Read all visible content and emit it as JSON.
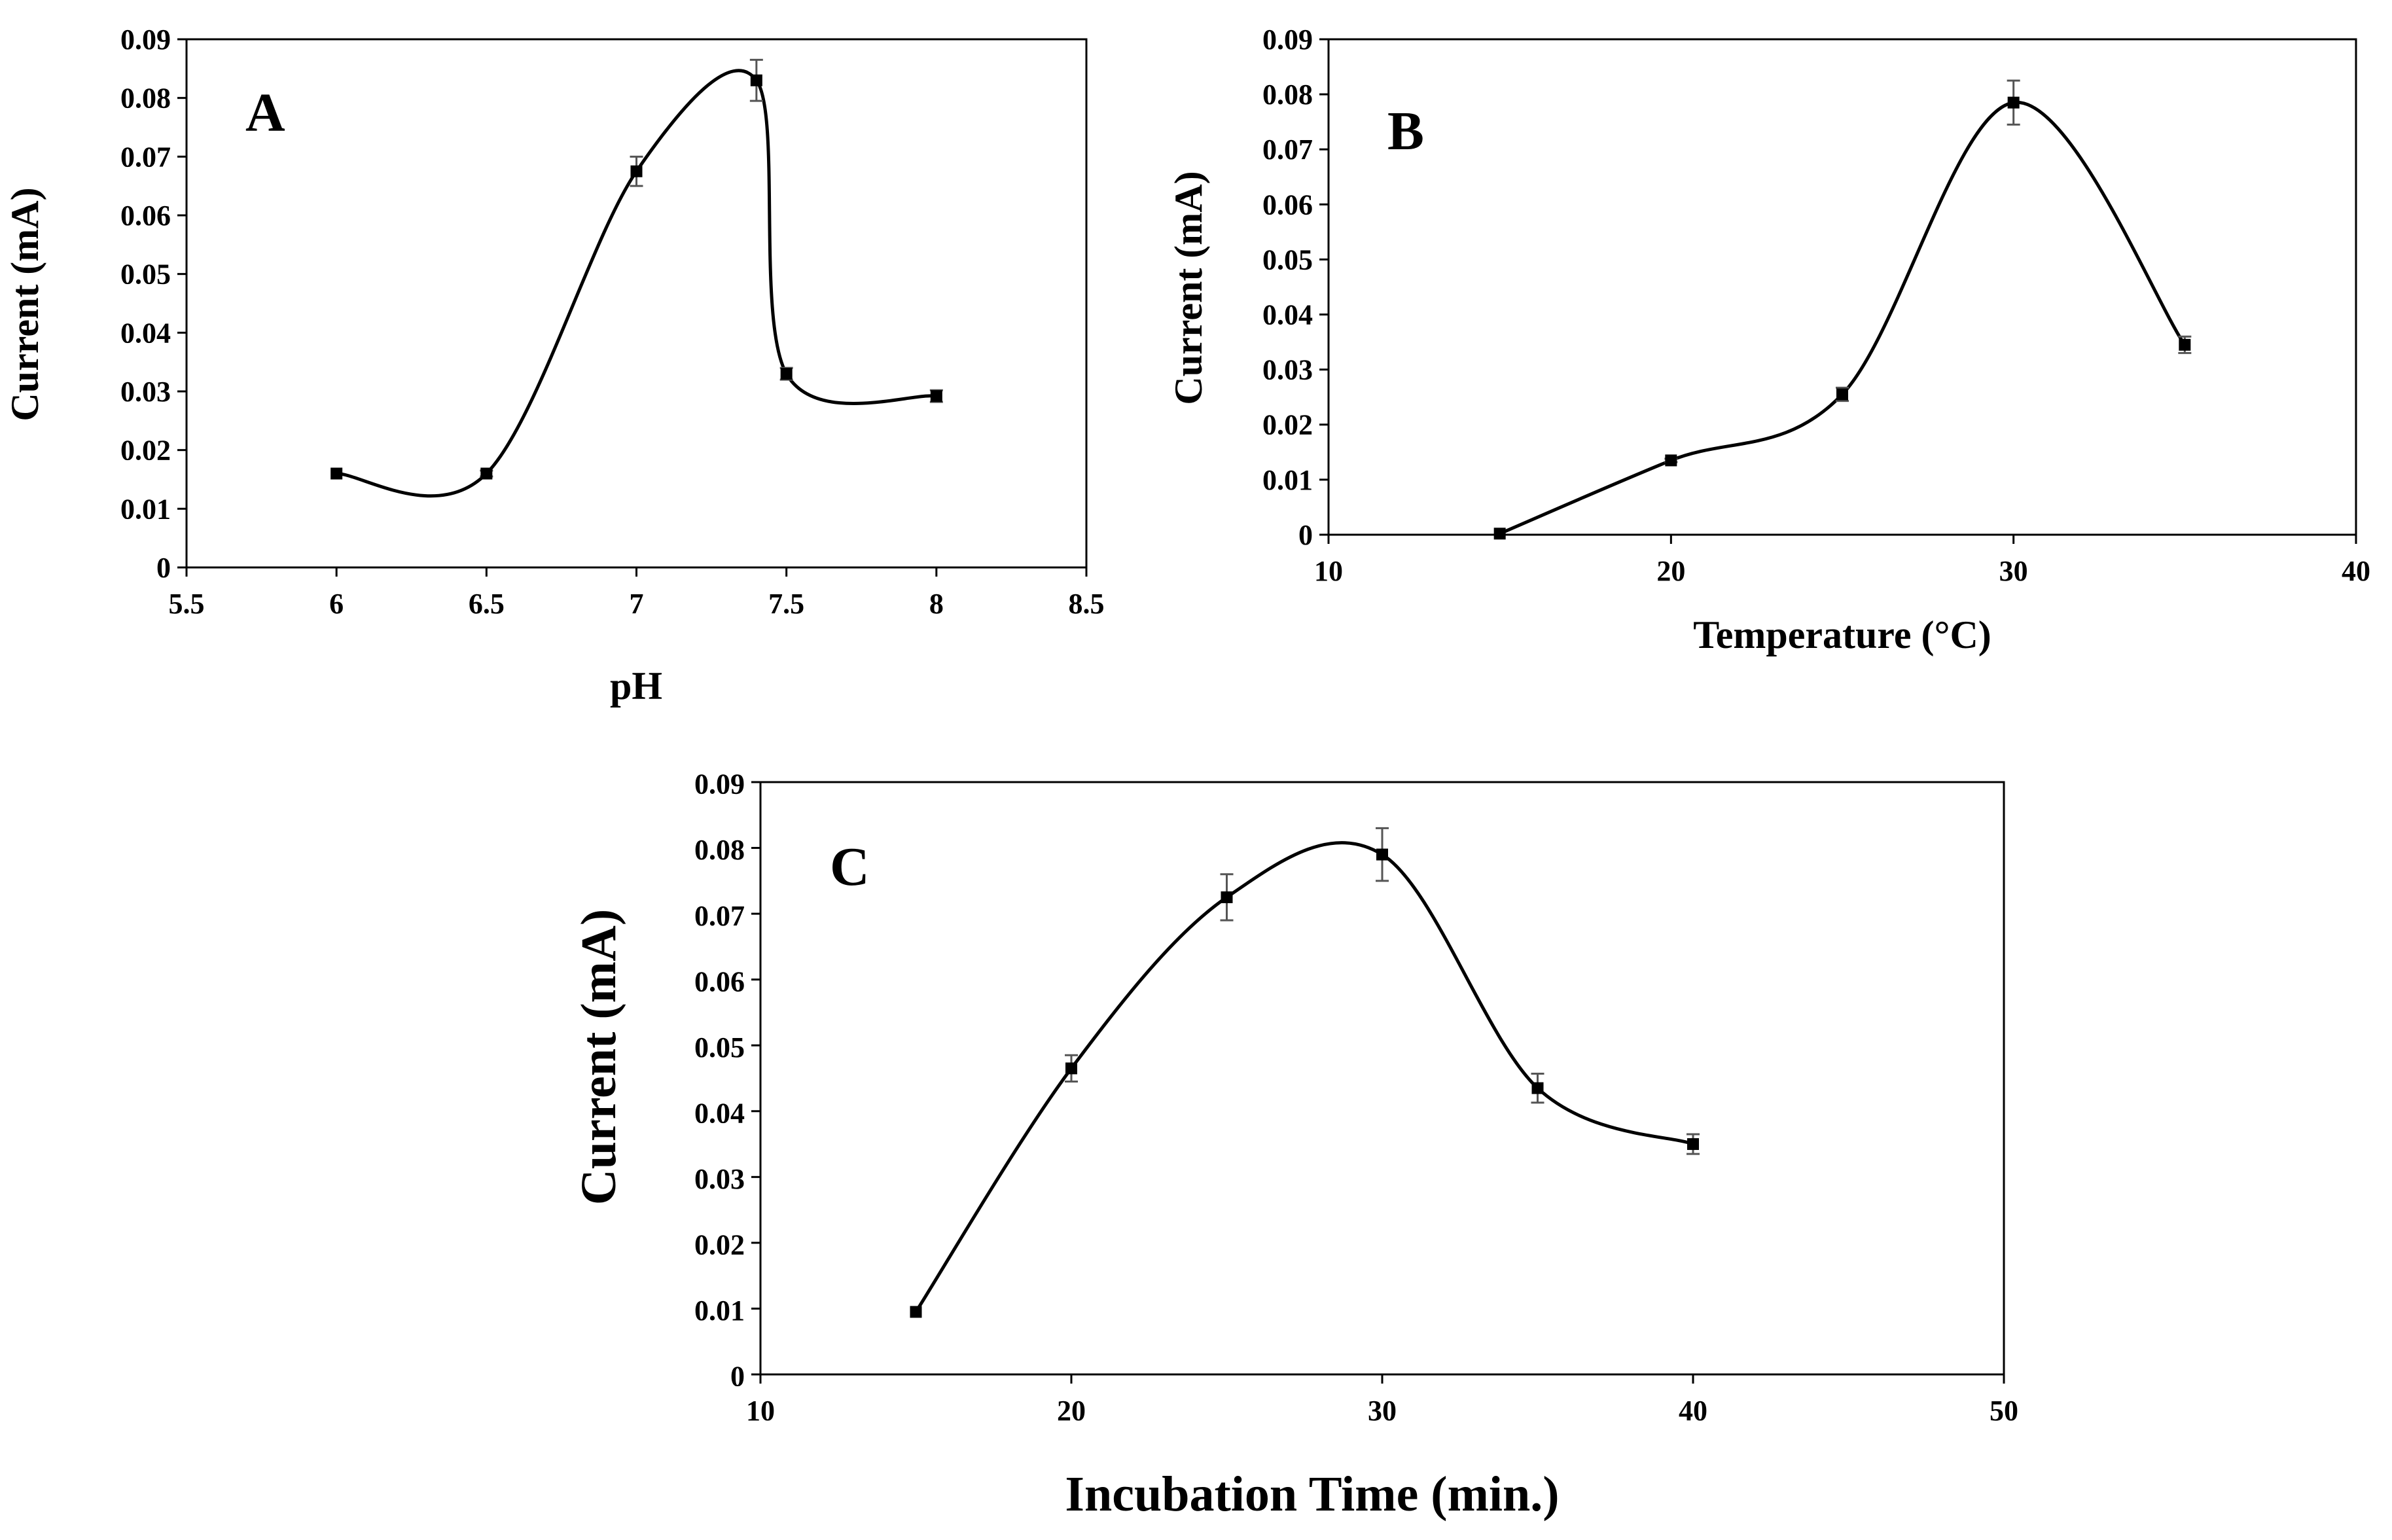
{
  "chart_data": [
    {
      "id": "A",
      "type": "line",
      "panel_label": "A",
      "xlabel": "pH",
      "ylabel": "Current (mA)",
      "xlim": [
        5.5,
        8.5
      ],
      "ylim": [
        0,
        0.09
      ],
      "xticks": [
        "5.5",
        "6",
        "6.5",
        "7",
        "7.5",
        "8",
        "8.5"
      ],
      "yticks": [
        "0",
        "0.01",
        "0.02",
        "0.03",
        "0.04",
        "0.05",
        "0.06",
        "0.07",
        "0.08",
        "0.09"
      ],
      "grid": false,
      "series": [
        {
          "name": "Current",
          "x": [
            6,
            6.5,
            7,
            7.4,
            7.5,
            8
          ],
          "y": [
            0.016,
            0.016,
            0.0675,
            0.083,
            0.033,
            0.0292
          ],
          "error": [
            0,
            0.0005,
            0.0025,
            0.0035,
            0.001,
            0.001
          ]
        }
      ]
    },
    {
      "id": "B",
      "type": "line",
      "panel_label": "B",
      "xlabel": "Temperature (°C)",
      "ylabel": "Current (mA)",
      "xlim": [
        10,
        40
      ],
      "ylim": [
        0,
        0.09
      ],
      "xticks": [
        "10",
        "20",
        "30",
        "40"
      ],
      "yticks": [
        "0",
        "0.01",
        "0.02",
        "0.03",
        "0.04",
        "0.05",
        "0.06",
        "0.07",
        "0.08",
        "0.09"
      ],
      "grid": false,
      "series": [
        {
          "name": "Current",
          "x": [
            15,
            20,
            25,
            30,
            35
          ],
          "y": [
            0.0002,
            0.0135,
            0.0255,
            0.0785,
            0.0345
          ],
          "error": [
            0,
            0.0003,
            0.0012,
            0.004,
            0.0015
          ]
        }
      ]
    },
    {
      "id": "C",
      "type": "line",
      "panel_label": "C",
      "xlabel": "Incubation Time (min.)",
      "ylabel": "Current (mA)",
      "xlim": [
        10,
        50
      ],
      "ylim": [
        0,
        0.09
      ],
      "xticks": [
        "10",
        "20",
        "30",
        "40",
        "50"
      ],
      "yticks": [
        "0",
        "0.01",
        "0.02",
        "0.03",
        "0.04",
        "0.05",
        "0.06",
        "0.07",
        "0.08",
        "0.09"
      ],
      "grid": false,
      "series": [
        {
          "name": "Current",
          "x": [
            15,
            20,
            25,
            30,
            35,
            40
          ],
          "y": [
            0.0095,
            0.0465,
            0.0725,
            0.079,
            0.0435,
            0.035
          ],
          "error": [
            0,
            0.002,
            0.0035,
            0.004,
            0.0022,
            0.0015
          ]
        }
      ]
    }
  ]
}
